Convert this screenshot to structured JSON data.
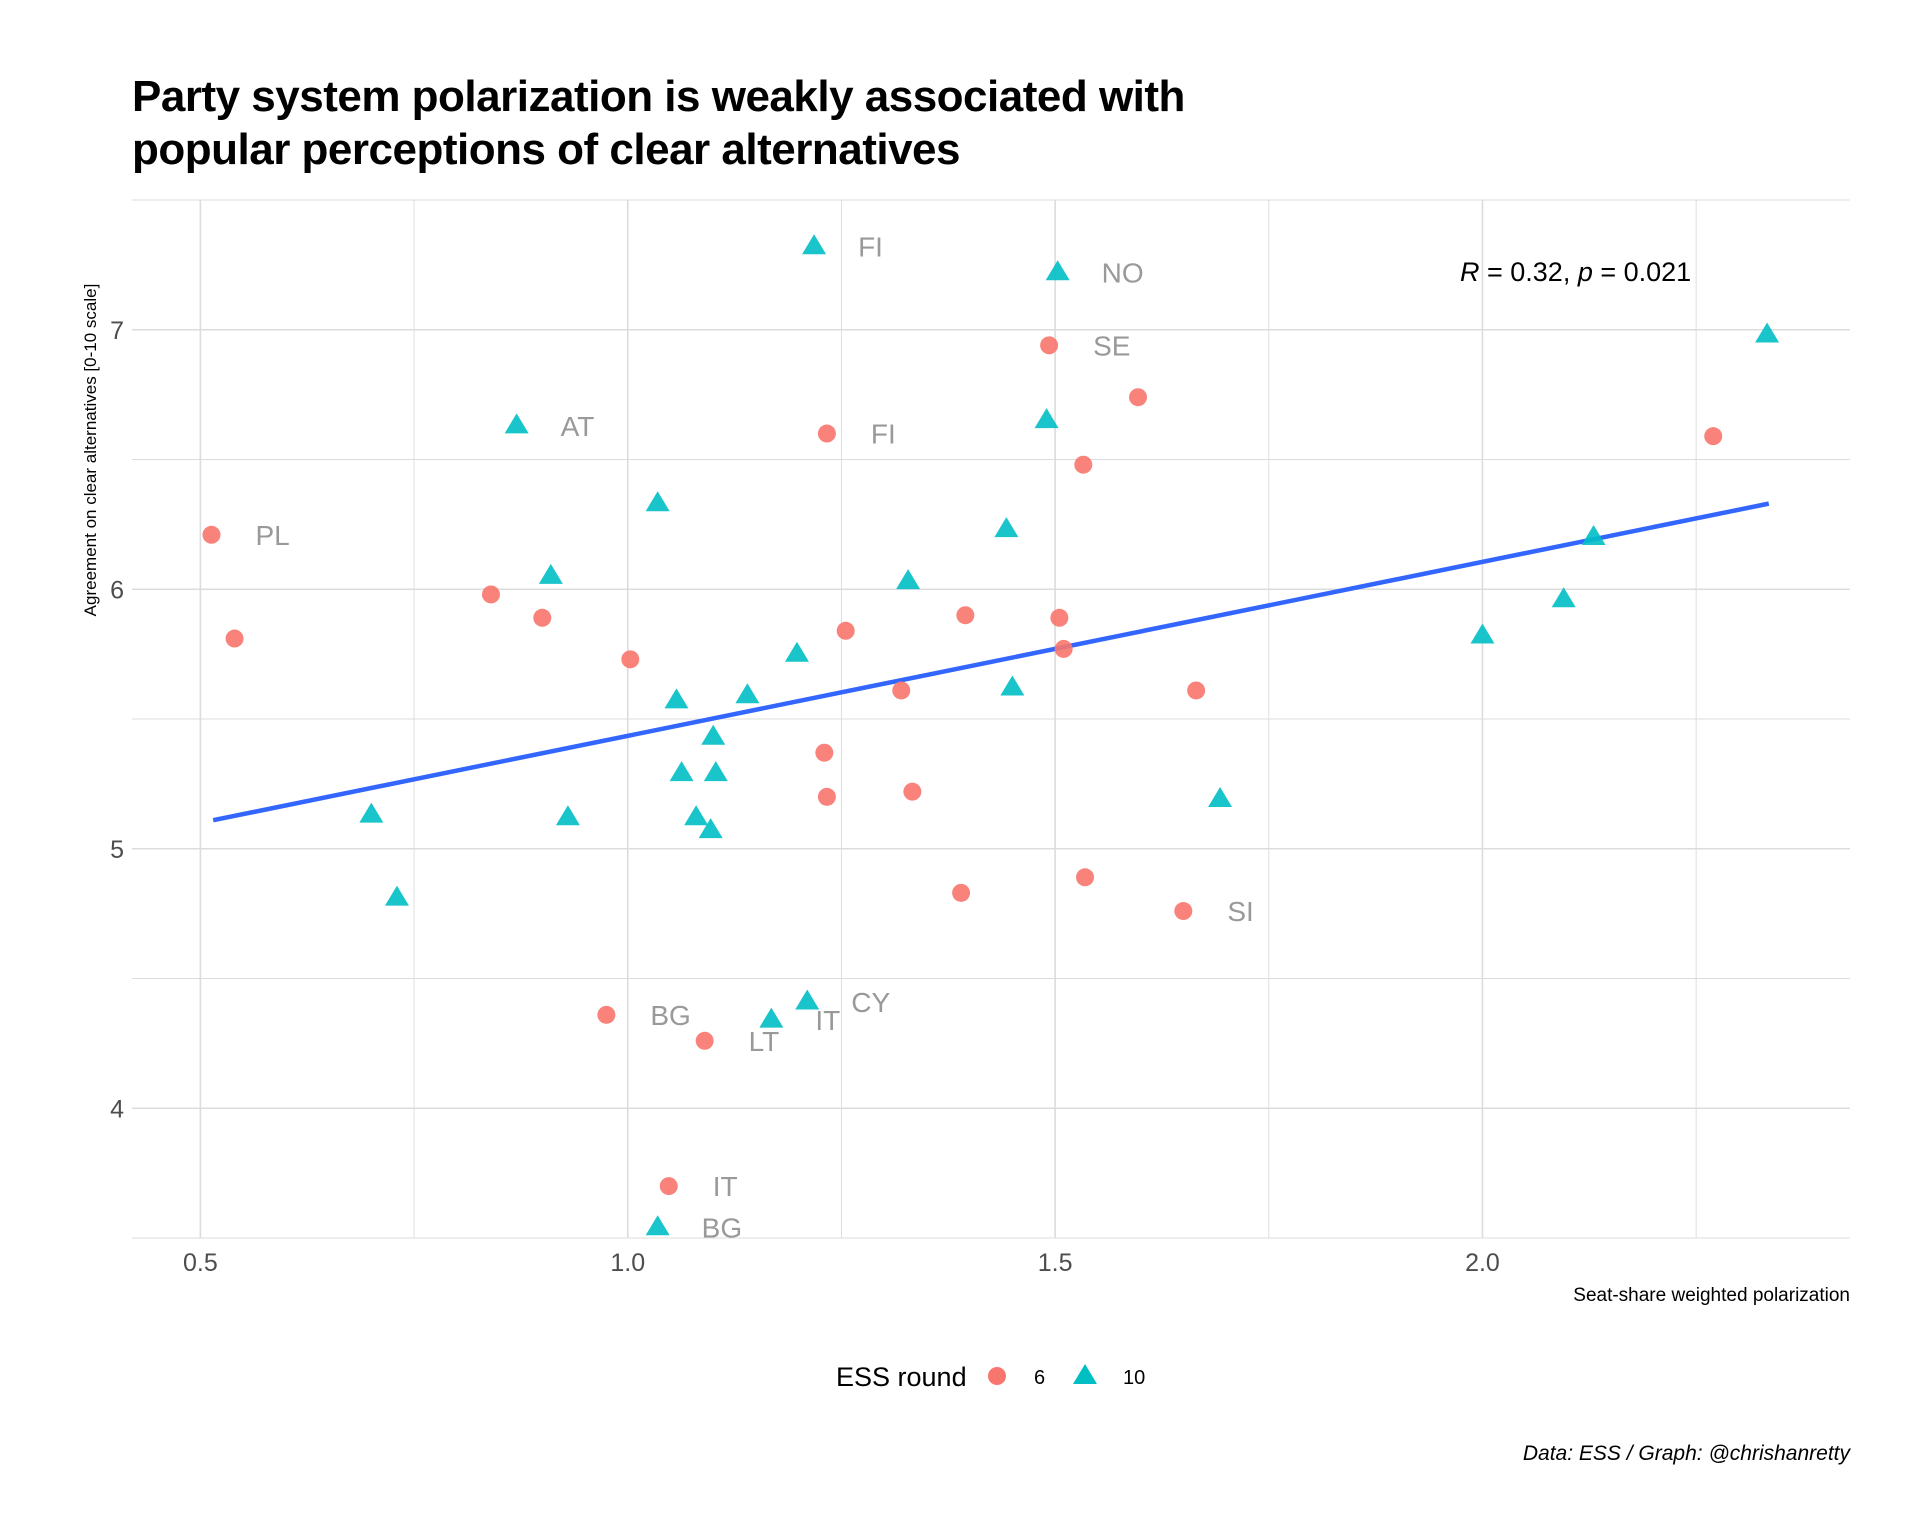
{
  "title_lines": [
    "Party system polarization is weakly associated with",
    "popular perceptions of clear alternatives"
  ],
  "caption": "Data: ESS / Graph: @chrishanretty",
  "colors": {
    "round6": "#F8766D",
    "round10": "#00BFC4",
    "fit_line": "#3366FF",
    "label": "#999999",
    "grid": "#dcdcdc"
  },
  "chart_data": {
    "type": "scatter",
    "xlabel": "Seat-share weighted polarization",
    "ylabel": "Agreement on clear alternatives [0-10 scale]",
    "xlim": [
      0.42,
      2.43
    ],
    "ylim": [
      3.5,
      7.5
    ],
    "x_ticks": [
      0.5,
      1.0,
      1.5,
      2.0
    ],
    "x_tick_labels": [
      "0.5",
      "1.0",
      "1.5",
      "2.0"
    ],
    "y_ticks": [
      4,
      5,
      6,
      7
    ],
    "y_tick_labels": [
      "4",
      "5",
      "6",
      "7"
    ],
    "grid": true,
    "annotation": {
      "r_label": "R",
      "r_text": " = 0.32, ",
      "p_label": "p",
      "p_text": " = 0.021"
    },
    "legend": {
      "title": "ESS round",
      "position": "bottom",
      "entries": [
        "6",
        "10"
      ]
    },
    "fit_line": {
      "x": [
        0.515,
        2.335
      ],
      "y": [
        5.11,
        6.33
      ]
    },
    "series": [
      {
        "name": "6",
        "shape": "circle",
        "points": [
          {
            "x": 0.513,
            "y": 6.21,
            "label": "PL"
          },
          {
            "x": 0.54,
            "y": 5.81,
            "label": ""
          },
          {
            "x": 0.84,
            "y": 5.98,
            "label": ""
          },
          {
            "x": 0.9,
            "y": 5.89,
            "label": ""
          },
          {
            "x": 1.003,
            "y": 5.73,
            "label": ""
          },
          {
            "x": 0.975,
            "y": 4.36,
            "label": "BG"
          },
          {
            "x": 1.048,
            "y": 3.7,
            "label": "IT"
          },
          {
            "x": 1.09,
            "y": 4.26,
            "label": "LT"
          },
          {
            "x": 1.23,
            "y": 5.37,
            "label": ""
          },
          {
            "x": 1.233,
            "y": 5.2,
            "label": ""
          },
          {
            "x": 1.233,
            "y": 6.6,
            "label": "FI"
          },
          {
            "x": 1.255,
            "y": 5.84,
            "label": ""
          },
          {
            "x": 1.32,
            "y": 5.61,
            "label": ""
          },
          {
            "x": 1.333,
            "y": 5.22,
            "label": ""
          },
          {
            "x": 1.39,
            "y": 4.83,
            "label": ""
          },
          {
            "x": 1.395,
            "y": 5.9,
            "label": ""
          },
          {
            "x": 1.493,
            "y": 6.94,
            "label": "SE"
          },
          {
            "x": 1.505,
            "y": 5.89,
            "label": ""
          },
          {
            "x": 1.51,
            "y": 5.77,
            "label": ""
          },
          {
            "x": 1.533,
            "y": 6.48,
            "label": ""
          },
          {
            "x": 1.535,
            "y": 4.89,
            "label": ""
          },
          {
            "x": 1.597,
            "y": 6.74,
            "label": ""
          },
          {
            "x": 1.65,
            "y": 4.76,
            "label": "SI"
          },
          {
            "x": 1.665,
            "y": 5.61,
            "label": ""
          },
          {
            "x": 2.27,
            "y": 6.59,
            "label": ""
          }
        ]
      },
      {
        "name": "10",
        "shape": "triangle",
        "points": [
          {
            "x": 0.7,
            "y": 5.13,
            "label": ""
          },
          {
            "x": 0.73,
            "y": 4.81,
            "label": ""
          },
          {
            "x": 0.87,
            "y": 6.63,
            "label": "AT"
          },
          {
            "x": 0.91,
            "y": 6.05,
            "label": ""
          },
          {
            "x": 0.93,
            "y": 5.12,
            "label": ""
          },
          {
            "x": 1.035,
            "y": 6.33,
            "label": ""
          },
          {
            "x": 1.035,
            "y": 3.54,
            "label": "BG"
          },
          {
            "x": 1.057,
            "y": 5.57,
            "label": ""
          },
          {
            "x": 1.063,
            "y": 5.29,
            "label": ""
          },
          {
            "x": 1.08,
            "y": 5.12,
            "label": ""
          },
          {
            "x": 1.097,
            "y": 5.07,
            "label": ""
          },
          {
            "x": 1.1,
            "y": 5.43,
            "label": ""
          },
          {
            "x": 1.103,
            "y": 5.29,
            "label": ""
          },
          {
            "x": 1.14,
            "y": 5.59,
            "label": ""
          },
          {
            "x": 1.168,
            "y": 4.34,
            "label": "IT"
          },
          {
            "x": 1.198,
            "y": 5.75,
            "label": ""
          },
          {
            "x": 1.21,
            "y": 4.41,
            "label": "CY"
          },
          {
            "x": 1.218,
            "y": 7.32,
            "label": "FI"
          },
          {
            "x": 1.328,
            "y": 6.03,
            "label": ""
          },
          {
            "x": 1.443,
            "y": 6.23,
            "label": ""
          },
          {
            "x": 1.45,
            "y": 5.62,
            "label": ""
          },
          {
            "x": 1.49,
            "y": 6.65,
            "label": ""
          },
          {
            "x": 1.503,
            "y": 7.22,
            "label": "NO"
          },
          {
            "x": 1.693,
            "y": 5.19,
            "label": ""
          },
          {
            "x": 2.0,
            "y": 5.82,
            "label": ""
          },
          {
            "x": 2.095,
            "y": 5.96,
            "label": ""
          },
          {
            "x": 2.13,
            "y": 6.2,
            "label": ""
          },
          {
            "x": 2.333,
            "y": 6.98,
            "label": ""
          }
        ]
      }
    ]
  }
}
